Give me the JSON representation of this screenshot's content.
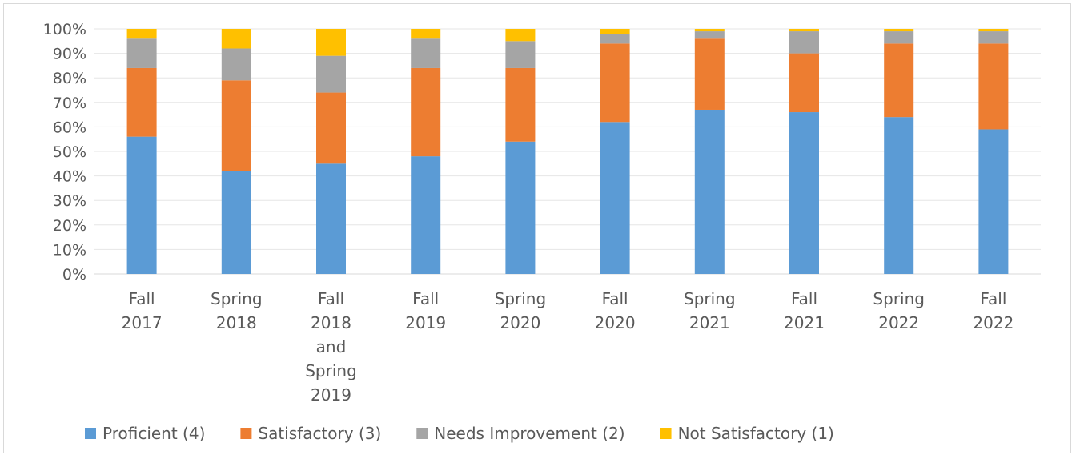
{
  "chart_data": {
    "type": "bar",
    "stacked": true,
    "categories": [
      [
        "Fall",
        "2017"
      ],
      [
        "Spring",
        "2018"
      ],
      [
        "Fall",
        "2018",
        "and",
        "Spring",
        "2019"
      ],
      [
        "Fall",
        "2019"
      ],
      [
        "Spring",
        "2020"
      ],
      [
        "Fall",
        "2020"
      ],
      [
        "Spring",
        "2021"
      ],
      [
        "Fall",
        "2021"
      ],
      [
        "Spring",
        "2022"
      ],
      [
        "Fall",
        "2022"
      ]
    ],
    "series": [
      {
        "name": "Proficient (4)",
        "color": "#5b9bd5",
        "values": [
          56,
          42,
          45,
          48,
          54,
          62,
          67,
          66,
          64,
          59
        ]
      },
      {
        "name": "Satisfactory (3)",
        "color": "#ed7d31",
        "values": [
          28,
          37,
          29,
          36,
          30,
          32,
          29,
          24,
          30,
          35
        ]
      },
      {
        "name": "Needs Improvement (2)",
        "color": "#a5a5a5",
        "values": [
          12,
          13,
          15,
          12,
          11,
          4,
          3,
          9,
          5,
          5
        ]
      },
      {
        "name": "Not Satisfactory (1)",
        "color": "#ffc000",
        "values": [
          4,
          8,
          11,
          4,
          5,
          2,
          1,
          1,
          1,
          1
        ]
      }
    ],
    "y_ticks": [
      "0%",
      "10%",
      "20%",
      "30%",
      "40%",
      "50%",
      "60%",
      "70%",
      "80%",
      "90%",
      "100%"
    ],
    "ylim": [
      0,
      100
    ],
    "grid": true,
    "legend": "bottom"
  }
}
